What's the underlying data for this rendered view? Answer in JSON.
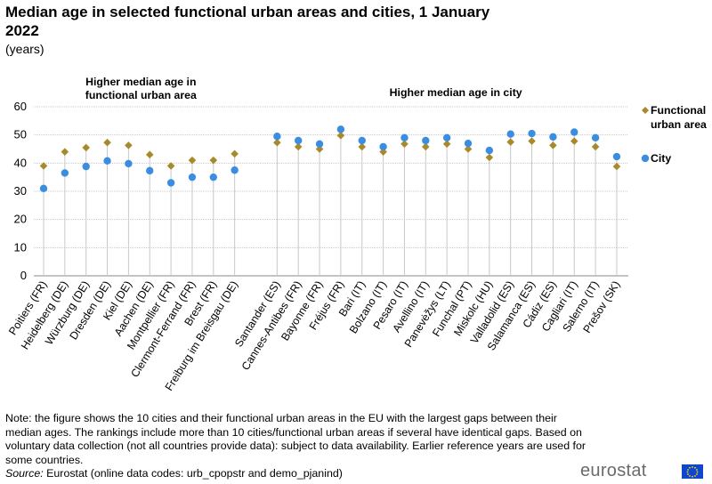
{
  "title": "Median age in selected functional urban areas and cities, 1 January 2022",
  "subtitle": "(years)",
  "note": "Note: the figure shows the 10 cities and their functional urban areas in the EU with the largest gaps between their median ages. The rankings include more than 10 cities/functional urban areas if several have identical gaps. Based on voluntary data collection (not all countries provide data): subject to data availability. Earlier reference years are used for some countries.",
  "source_label": "Source:",
  "source_text": "Eurostat (online data codes: urb_cpopstr and demo_pjanind)",
  "logo_text": "eurostat",
  "colors": {
    "fua": "#a88a2c",
    "city": "#3a8de0",
    "grid": "#c8c8c8",
    "drop": "#c8c8c8"
  },
  "chart_data": {
    "type": "scatter",
    "title": "Median age in selected functional urban areas and cities, 1 January 2022",
    "ylabel": "(years)",
    "ylim": [
      0,
      60
    ],
    "yticks": [
      0,
      10,
      20,
      30,
      40,
      50,
      60
    ],
    "group_labels": [
      "Higher median age in functional urban area",
      "Higher median age in city"
    ],
    "groups": [
      [
        "Poitiers (FR)",
        "Heidelberg (DE)",
        "Würzburg (DE)",
        "Dresden (DE)",
        "Kiel (DE)",
        "Aachen (DE)",
        "Montpellier (FR)",
        "Clermont-Ferrand (FR)",
        "Brest (FR)",
        "Freiburg im Breisgau (DE)"
      ],
      [
        "Santander (ES)",
        "Cannes-Antibes (FR)",
        "Bayonne (FR)",
        "Fréjus (FR)",
        "Bari (IT)",
        "Bolzano (IT)",
        "Pesaro (IT)",
        "Avellino (IT)",
        "Panevėžys (LT)",
        "Funchal (PT)",
        "Miskolc (HU)",
        "Valladolid (ES)",
        "Salamanca (ES)",
        "Cádiz (ES)",
        "Cagliari (IT)",
        "Salerno (IT)",
        "Prešov (SK)"
      ]
    ],
    "series": [
      {
        "name": "Functional urban area",
        "marker": "diamond",
        "values": [
          [
            39.0,
            44.0,
            45.5,
            47.3,
            46.3,
            43.0,
            39.0,
            41.0,
            41.0,
            43.3
          ],
          [
            47.3,
            45.8,
            45.0,
            49.8,
            45.8,
            44.0,
            46.8,
            45.8,
            46.8,
            45.0,
            42.0,
            47.5,
            47.8,
            46.3,
            47.8,
            45.8,
            38.8
          ]
        ]
      },
      {
        "name": "City",
        "marker": "circle",
        "values": [
          [
            31.0,
            36.5,
            38.8,
            40.8,
            39.8,
            37.3,
            33.0,
            35.0,
            35.0,
            37.5
          ],
          [
            49.5,
            48.0,
            46.8,
            52.0,
            48.0,
            45.8,
            49.0,
            48.0,
            49.0,
            47.0,
            44.5,
            50.3,
            50.5,
            49.3,
            51.0,
            49.0,
            42.3
          ]
        ]
      }
    ],
    "legend_position": "right"
  }
}
